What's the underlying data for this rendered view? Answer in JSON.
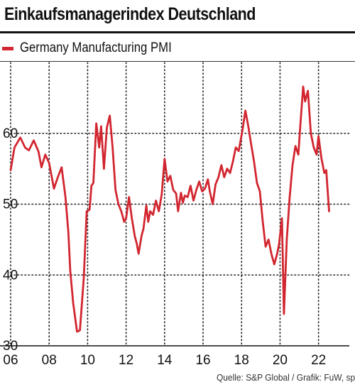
{
  "header": {
    "title": "Einkaufsmanagerindex Deutschland"
  },
  "legend": {
    "label": "Germany Manufacturing PMI",
    "color": "#d22630"
  },
  "footer": {
    "source": "Quelle: S&P Global / Grafik: FuW, sp"
  },
  "chart_data": {
    "type": "line",
    "title": "Einkaufsmanagerindex Deutschland",
    "xlabel": "",
    "ylabel": "",
    "xlim": [
      2006,
      2023.6
    ],
    "ylim": [
      30,
      70
    ],
    "x_ticks": [
      2006,
      2008,
      2010,
      2012,
      2014,
      2016,
      2018,
      2020,
      2022
    ],
    "x_tick_labels": [
      "06",
      "08",
      "10",
      "12",
      "14",
      "16",
      "18",
      "20",
      "22"
    ],
    "y_ticks": [
      30,
      40,
      50,
      60
    ],
    "y_tick_labels": [
      "30",
      "40",
      "50",
      "60"
    ],
    "grid": {
      "x": true,
      "y": true,
      "style": "dotted"
    },
    "legend_position": "top-left",
    "series": [
      {
        "name": "Germany Manufacturing PMI",
        "color": "#d22630",
        "x": [
          2006.0,
          2006.2,
          2006.5,
          2006.75,
          2006.95,
          2007.2,
          2007.45,
          2007.6,
          2007.8,
          2008.0,
          2008.25,
          2008.45,
          2008.65,
          2008.85,
          2009.0,
          2009.1,
          2009.25,
          2009.45,
          2009.6,
          2009.8,
          2009.95,
          2010.1,
          2010.2,
          2010.3,
          2010.45,
          2010.6,
          2010.7,
          2010.85,
          2011.0,
          2011.15,
          2011.3,
          2011.45,
          2011.6,
          2011.75,
          2011.9,
          2012.0,
          2012.15,
          2012.3,
          2012.45,
          2012.55,
          2012.65,
          2012.8,
          2012.9,
          2013.05,
          2013.15,
          2013.25,
          2013.4,
          2013.55,
          2013.7,
          2013.85,
          2014.0,
          2014.15,
          2014.3,
          2014.45,
          2014.6,
          2014.7,
          2014.85,
          2014.95,
          2015.05,
          2015.2,
          2015.35,
          2015.5,
          2015.65,
          2015.8,
          2015.95,
          2016.1,
          2016.25,
          2016.35,
          2016.5,
          2016.65,
          2016.8,
          2016.95,
          2017.1,
          2017.25,
          2017.4,
          2017.55,
          2017.7,
          2017.85,
          2017.95,
          2018.05,
          2018.2,
          2018.35,
          2018.5,
          2018.65,
          2018.8,
          2018.95,
          2019.1,
          2019.25,
          2019.4,
          2019.55,
          2019.7,
          2019.85,
          2019.95,
          2020.1,
          2020.2,
          2020.35,
          2020.5,
          2020.65,
          2020.8,
          2020.95,
          2021.05,
          2021.2,
          2021.3,
          2021.45,
          2021.6,
          2021.75,
          2021.9,
          2022.0,
          2022.15,
          2022.3,
          2022.4,
          2022.55
        ],
        "y": [
          54.8,
          58.0,
          59.4,
          58.0,
          57.6,
          59.0,
          57.4,
          55.2,
          57.0,
          55.8,
          52.2,
          53.8,
          55.2,
          51.0,
          46.0,
          40.5,
          36.0,
          32.0,
          32.2,
          39.6,
          49.0,
          49.2,
          52.6,
          53.0,
          61.4,
          58.0,
          61.0,
          55.0,
          60.8,
          62.5,
          58.0,
          52.0,
          50.0,
          49.0,
          47.5,
          48.0,
          51.0,
          48.0,
          45.5,
          44.5,
          43.0,
          45.5,
          46.5,
          49.8,
          47.5,
          49.0,
          48.5,
          50.5,
          49.0,
          51.4,
          56.4,
          53.2,
          54.0,
          52.0,
          51.5,
          49.0,
          51.6,
          50.2,
          51.2,
          51.0,
          52.6,
          50.5,
          52.0,
          53.2,
          51.8,
          52.2,
          53.5,
          51.8,
          50.0,
          52.8,
          53.8,
          55.5,
          53.8,
          55.0,
          54.4,
          56.0,
          58.0,
          57.5,
          59.0,
          60.5,
          63.2,
          61.0,
          58.4,
          56.0,
          53.0,
          51.8,
          47.6,
          44.0,
          45.0,
          43.0,
          41.5,
          43.0,
          44.4,
          48.0,
          34.5,
          45.0,
          51.0,
          55.5,
          58.2,
          57.0,
          61.0,
          66.6,
          64.5,
          66.0,
          60.0,
          58.0,
          57.0,
          59.6,
          56.5,
          54.4,
          54.8,
          49.0
        ]
      }
    ]
  }
}
